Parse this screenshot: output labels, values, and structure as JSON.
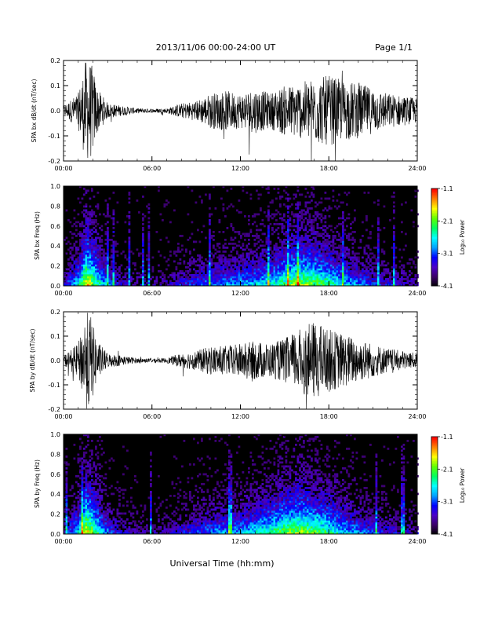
{
  "header": {
    "title": "2013/11/06  00:00-24:00 UT",
    "page": "Page 1/1"
  },
  "x_axis": {
    "title": "Universal Time (hh:mm)",
    "tick_labels": [
      "00:00",
      "06:00",
      "12:00",
      "18:00",
      "24:00"
    ],
    "range_hours": [
      0,
      24
    ]
  },
  "colorbar": {
    "label": "Log₁₀ Power",
    "tick_labels": [
      "-1.1",
      "-2.1",
      "-3.1",
      "-4.1"
    ],
    "range": [
      -4.1,
      -1.1
    ],
    "colors": [
      "#000000",
      "#3a0066",
      "#4b00c8",
      "#0000ff",
      "#00a0ff",
      "#00ffff",
      "#00ff60",
      "#60ff00",
      "#ffff00",
      "#ff8000",
      "#ff0000"
    ]
  },
  "chart_data": [
    {
      "type": "line",
      "ylabel": "SPA bx dB/dt (nT/sec)",
      "ylim": [
        -0.2,
        0.2
      ],
      "yticks": [
        "-0.2",
        "-0.1",
        "0.0",
        "0.1",
        "0.2"
      ],
      "series_color": "#000000",
      "envelope_hours": [
        0,
        1,
        1.5,
        1.8,
        2,
        2.3,
        3,
        4,
        5,
        6,
        7,
        8,
        9,
        10,
        11,
        12,
        13,
        14,
        15,
        16,
        17,
        18,
        19,
        20,
        21,
        22,
        23,
        24
      ],
      "envelope_amplitude": [
        0.02,
        0.07,
        0.2,
        0.2,
        0.17,
        0.09,
        0.03,
        0.02,
        0.01,
        0.008,
        0.01,
        0.03,
        0.04,
        0.07,
        0.08,
        0.07,
        0.09,
        0.07,
        0.1,
        0.11,
        0.13,
        0.14,
        0.12,
        0.11,
        0.09,
        0.07,
        0.06,
        0.05
      ]
    },
    {
      "type": "heatmap",
      "ylabel": "SPA bx Freq (Hz)",
      "ylim": [
        0.0,
        1.0
      ],
      "yticks": [
        "0.0",
        "0.2",
        "0.4",
        "0.6",
        "0.8",
        "1.0"
      ],
      "zlim": [
        -4.1,
        -1.1
      ],
      "activity_hours": [
        0,
        1,
        1.5,
        2,
        3,
        4,
        6,
        8,
        10,
        12,
        13,
        14,
        15,
        16,
        17,
        18,
        19,
        20,
        21,
        22,
        23,
        24
      ],
      "activity_level": [
        0.3,
        0.6,
        1.0,
        0.8,
        0.4,
        0.25,
        0.15,
        0.3,
        0.45,
        0.5,
        0.55,
        0.6,
        0.75,
        0.85,
        0.8,
        0.7,
        0.55,
        0.45,
        0.35,
        0.3,
        0.25,
        0.2
      ]
    },
    {
      "type": "line",
      "ylabel": "SPA by dB/dt (nT/sec)",
      "ylim": [
        -0.2,
        0.2
      ],
      "yticks": [
        "-0.2",
        "-0.1",
        "0.0",
        "0.1",
        "0.2"
      ],
      "series_color": "#000000",
      "envelope_hours": [
        0,
        1,
        1.5,
        1.8,
        2,
        2.3,
        3,
        4,
        5,
        6,
        7,
        8,
        9,
        10,
        11,
        12,
        13,
        14,
        15,
        16,
        17,
        18,
        19,
        20,
        21,
        22,
        23,
        24
      ],
      "envelope_amplitude": [
        0.02,
        0.07,
        0.2,
        0.2,
        0.15,
        0.08,
        0.03,
        0.02,
        0.01,
        0.008,
        0.01,
        0.03,
        0.04,
        0.06,
        0.06,
        0.07,
        0.08,
        0.07,
        0.09,
        0.13,
        0.16,
        0.13,
        0.11,
        0.09,
        0.07,
        0.05,
        0.04,
        0.03
      ]
    },
    {
      "type": "heatmap",
      "ylabel": "SPA by Freq (Hz)",
      "ylim": [
        0.0,
        1.0
      ],
      "yticks": [
        "0.0",
        "0.2",
        "0.4",
        "0.6",
        "0.8",
        "1.0"
      ],
      "zlim": [
        -4.1,
        -1.1
      ],
      "activity_hours": [
        0,
        1,
        1.5,
        2,
        3,
        4,
        6,
        8,
        10,
        12,
        13,
        14,
        15,
        16,
        17,
        18,
        19,
        20,
        21,
        22,
        23,
        24
      ],
      "activity_level": [
        0.3,
        0.6,
        1.0,
        0.8,
        0.4,
        0.25,
        0.15,
        0.3,
        0.45,
        0.5,
        0.6,
        0.7,
        0.8,
        0.85,
        0.8,
        0.7,
        0.55,
        0.45,
        0.35,
        0.3,
        0.25,
        0.2
      ]
    }
  ]
}
